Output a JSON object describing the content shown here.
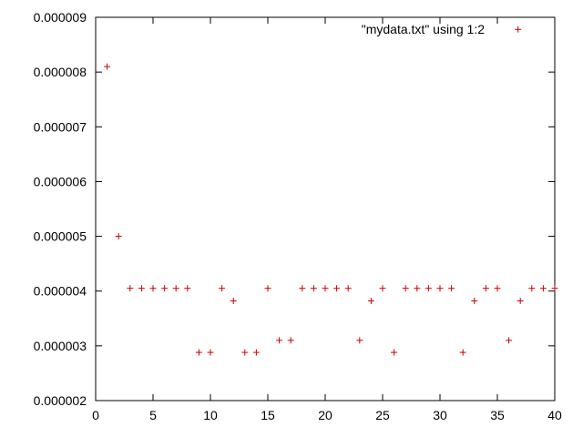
{
  "chart_data": {
    "type": "scatter",
    "title": "",
    "xlabel": "",
    "ylabel": "",
    "xlim": [
      0,
      40
    ],
    "ylim": [
      2e-06,
      9e-06
    ],
    "x_ticks": [
      0,
      5,
      10,
      15,
      20,
      25,
      30,
      35,
      40
    ],
    "y_ticks": [
      2e-06,
      3e-06,
      4e-06,
      5e-06,
      6e-06,
      7e-06,
      8e-06,
      9e-06
    ],
    "x_tick_labels": [
      "0",
      "5",
      "10",
      "15",
      "20",
      "25",
      "30",
      "35",
      "40"
    ],
    "y_tick_labels": [
      "0.000002",
      "0.000003",
      "0.000004",
      "0.000005",
      "0.000006",
      "0.000007",
      "0.000008",
      "0.000009"
    ],
    "grid": false,
    "legend_position": "top-right",
    "marker": "plus",
    "series": [
      {
        "name": "\"mydata.txt\" using 1:2",
        "color": "#cc0000",
        "x": [
          1,
          2,
          3,
          4,
          5,
          6,
          7,
          8,
          9,
          10,
          11,
          12,
          13,
          14,
          15,
          16,
          17,
          18,
          19,
          20,
          21,
          22,
          23,
          24,
          25,
          26,
          27,
          28,
          29,
          30,
          31,
          32,
          33,
          34,
          35,
          36,
          37,
          38,
          39,
          40
        ],
        "y": [
          8.1e-06,
          5e-06,
          4.05e-06,
          4.05e-06,
          4.05e-06,
          4.05e-06,
          4.05e-06,
          4.05e-06,
          2.88e-06,
          2.88e-06,
          4.05e-06,
          3.82e-06,
          2.88e-06,
          2.88e-06,
          4.05e-06,
          3.1e-06,
          3.1e-06,
          4.05e-06,
          4.05e-06,
          4.05e-06,
          4.05e-06,
          4.05e-06,
          3.1e-06,
          3.82e-06,
          4.05e-06,
          2.88e-06,
          4.05e-06,
          4.05e-06,
          4.05e-06,
          4.05e-06,
          4.05e-06,
          2.88e-06,
          3.82e-06,
          4.05e-06,
          4.05e-06,
          3.1e-06,
          3.82e-06,
          4.05e-06,
          4.05e-06,
          4.05e-06
        ]
      },
      {
        "name": "\"mydata.txt\" using 1:2",
        "color": "#cc0000",
        "x": [
          36.8
        ],
        "y": [
          8.78e-06
        ],
        "legend_sample": true
      }
    ]
  }
}
